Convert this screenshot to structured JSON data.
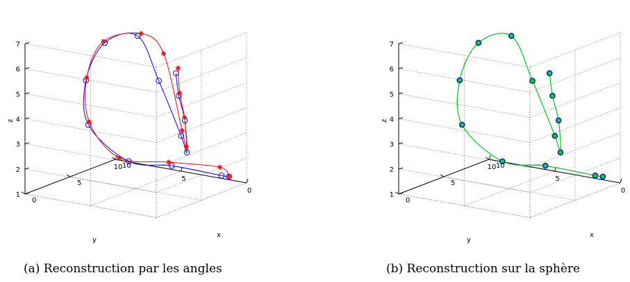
{
  "chart_data": [
    {
      "type": "line",
      "projection": "3d",
      "caption": "(a) Reconstruction par les angles",
      "xlabel": "x",
      "ylabel": "y",
      "zlabel": "z",
      "xlim": [
        0,
        10
      ],
      "ylim": [
        0,
        10
      ],
      "zlim": [
        1,
        7
      ],
      "xticks": [
        "0",
        "5",
        "10"
      ],
      "yticks": [
        "0",
        "5",
        "10"
      ],
      "zticks": [
        "1",
        "2",
        "3",
        "4",
        "5",
        "6",
        "7"
      ],
      "grid": true,
      "series": [
        {
          "color": "#0000ff",
          "marker": "circle",
          "x": [
            8.5,
            8.1,
            6.8,
            6.4,
            6.0,
            5.3,
            5.2,
            5.5,
            5.8,
            6.1,
            6.0,
            6.8,
            7.0,
            7.4
          ],
          "y": [
            0.3,
            0.6,
            3.5,
            6.5,
            9.3,
            9.0,
            7.5,
            5.2,
            3.8,
            2.3,
            1.8,
            2.5,
            3.1,
            3.6
          ],
          "z": [
            1.43,
            1.5,
            1.8,
            1.75,
            3.0,
            4.9,
            6.55,
            7.0,
            5.3,
            3.2,
            2.6,
            3.7,
            4.6,
            5.4
          ]
        },
        {
          "color": "#ff0000",
          "marker": "star",
          "x": [
            8.5,
            8.2,
            6.9,
            6.5,
            6.1,
            5.4,
            5.2,
            5.6,
            5.9,
            6.2,
            6.1,
            6.9,
            7.1,
            7.5
          ],
          "y": [
            0.3,
            0.8,
            3.8,
            7.3,
            9.3,
            9.0,
            7.6,
            5.0,
            3.5,
            2.3,
            1.9,
            2.6,
            3.1,
            3.5
          ],
          "z": [
            1.43,
            1.8,
            1.9,
            1.8,
            3.1,
            5.0,
            6.6,
            7.1,
            6.4,
            3.4,
            2.8,
            3.8,
            4.7,
            5.6
          ]
        }
      ]
    },
    {
      "type": "line",
      "projection": "3d",
      "caption": "(b) Reconstruction sur la sphère",
      "xlabel": "x",
      "ylabel": "y",
      "zlabel": "z",
      "xlim": [
        0,
        10
      ],
      "ylim": [
        0,
        10
      ],
      "zlim": [
        1,
        7
      ],
      "xticks": [
        "0",
        "5",
        "10"
      ],
      "yticks": [
        "0",
        "5",
        "10"
      ],
      "zticks": [
        "1",
        "2",
        "3",
        "4",
        "5",
        "6",
        "7"
      ],
      "grid": true,
      "series": [
        {
          "color": "#0000ff",
          "marker": "circle",
          "x": [
            8.5,
            8.1,
            6.8,
            6.4,
            6.0,
            5.3,
            5.2,
            5.5,
            5.8,
            6.1,
            6.0,
            6.8,
            7.0,
            7.4
          ],
          "y": [
            0.3,
            0.6,
            3.5,
            6.5,
            9.3,
            9.0,
            7.5,
            5.2,
            3.8,
            2.3,
            1.8,
            2.5,
            3.1,
            3.6
          ],
          "z": [
            1.43,
            1.5,
            1.8,
            1.75,
            3.0,
            4.9,
            6.55,
            7.0,
            5.3,
            3.2,
            2.6,
            3.7,
            4.6,
            5.4
          ]
        },
        {
          "color": "#00dd00",
          "marker": "circle",
          "x": [
            8.5,
            8.1,
            6.8,
            6.4,
            6.0,
            5.3,
            5.2,
            5.5,
            5.8,
            6.1,
            6.0,
            6.8,
            7.0,
            7.4
          ],
          "y": [
            0.3,
            0.6,
            3.5,
            6.5,
            9.3,
            9.0,
            7.5,
            5.2,
            3.8,
            2.3,
            1.8,
            2.5,
            3.1,
            3.6
          ],
          "z": [
            1.43,
            1.5,
            1.8,
            1.75,
            3.0,
            4.9,
            6.55,
            7.0,
            5.3,
            3.2,
            2.6,
            3.7,
            4.6,
            5.4
          ]
        }
      ]
    }
  ]
}
